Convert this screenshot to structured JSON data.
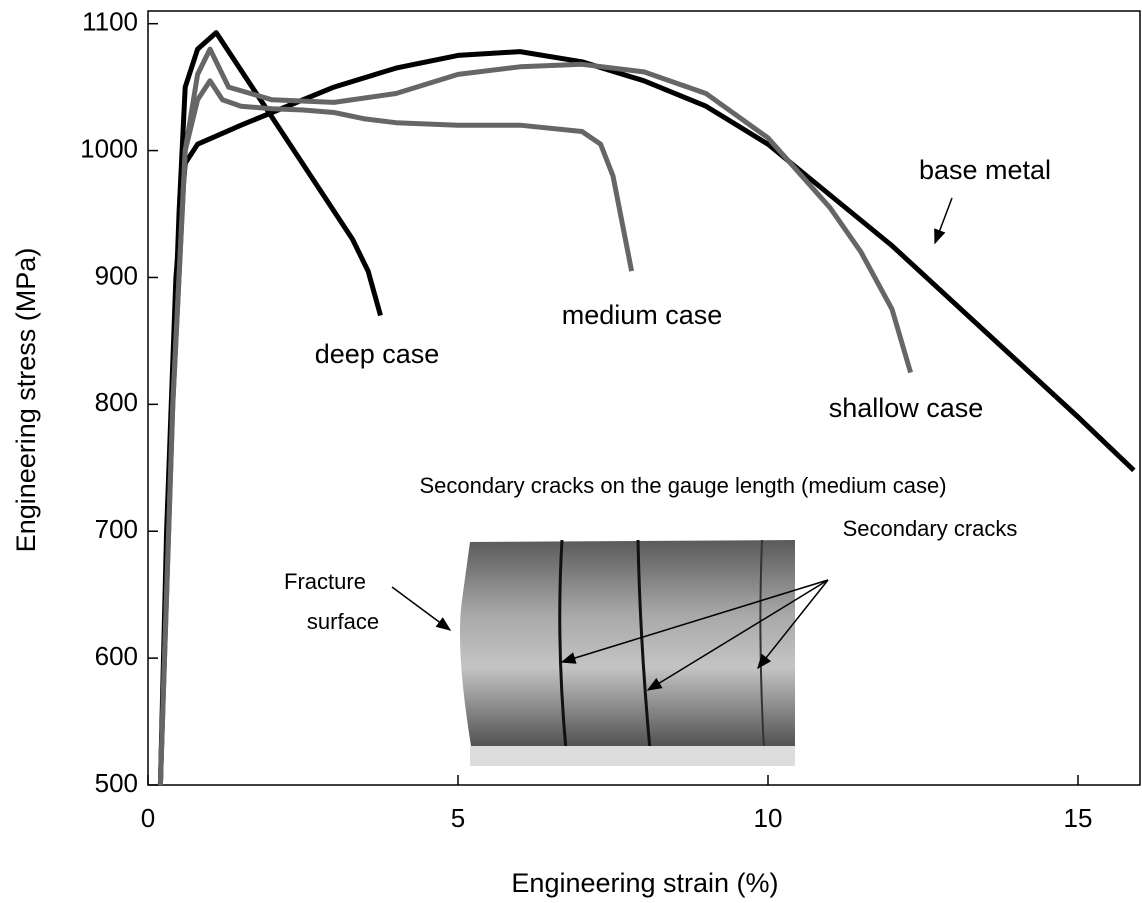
{
  "chart_data": {
    "type": "line",
    "x_label": "Engineering strain (%)",
    "y_label": "Engineering stress (MPa)",
    "xlim": [
      0,
      16
    ],
    "ylim": [
      500,
      1110
    ],
    "xticks": [
      0,
      5,
      10,
      15
    ],
    "yticks": [
      500,
      600,
      700,
      800,
      900,
      1000,
      1100
    ],
    "grid": false,
    "series": [
      {
        "name": "base metal",
        "color": "#000000",
        "x": [
          0.2,
          0.3,
          0.45,
          0.6,
          0.8,
          1.5,
          2,
          3,
          4,
          5,
          6,
          7,
          8,
          9,
          10,
          11,
          12,
          13,
          14,
          15,
          15.9
        ],
        "values": [
          500,
          700,
          900,
          990,
          1005,
          1020,
          1030,
          1050,
          1065,
          1075,
          1078,
          1070,
          1055,
          1035,
          1005,
          965,
          925,
          880,
          835,
          790,
          748
        ]
      },
      {
        "name": "deep case",
        "color": "#000000",
        "x": [
          0.2,
          0.35,
          0.5,
          0.6,
          0.8,
          1.1,
          3.3,
          3.4,
          3.55,
          3.75
        ],
        "values": [
          500,
          750,
          950,
          1050,
          1080,
          1093,
          930,
          920,
          905,
          870
        ]
      },
      {
        "name": "medium case",
        "color": "#666666",
        "x": [
          0.2,
          0.4,
          0.6,
          0.8,
          1,
          1.2,
          1.5,
          2,
          2.5,
          3,
          3.5,
          4,
          5,
          6,
          7,
          7.3,
          7.5,
          7.7,
          7.8
        ],
        "values": [
          500,
          800,
          1000,
          1040,
          1055,
          1040,
          1035,
          1033,
          1032,
          1030,
          1025,
          1022,
          1020,
          1020,
          1015,
          1005,
          980,
          930,
          905
        ]
      },
      {
        "name": "shallow case",
        "color": "#666666",
        "x": [
          0.2,
          0.4,
          0.6,
          0.8,
          1,
          1.3,
          2,
          3,
          4,
          5,
          6,
          7,
          8,
          9,
          10,
          11,
          11.5,
          12,
          12.3
        ],
        "values": [
          500,
          800,
          1000,
          1060,
          1080,
          1050,
          1040,
          1038,
          1045,
          1060,
          1066,
          1068,
          1062,
          1045,
          1010,
          955,
          920,
          875,
          825
        ]
      }
    ],
    "annotations": [
      "Secondary cracks on the gauge length (medium case)",
      "Secondary cracks",
      "Fracture",
      "surface"
    ]
  }
}
